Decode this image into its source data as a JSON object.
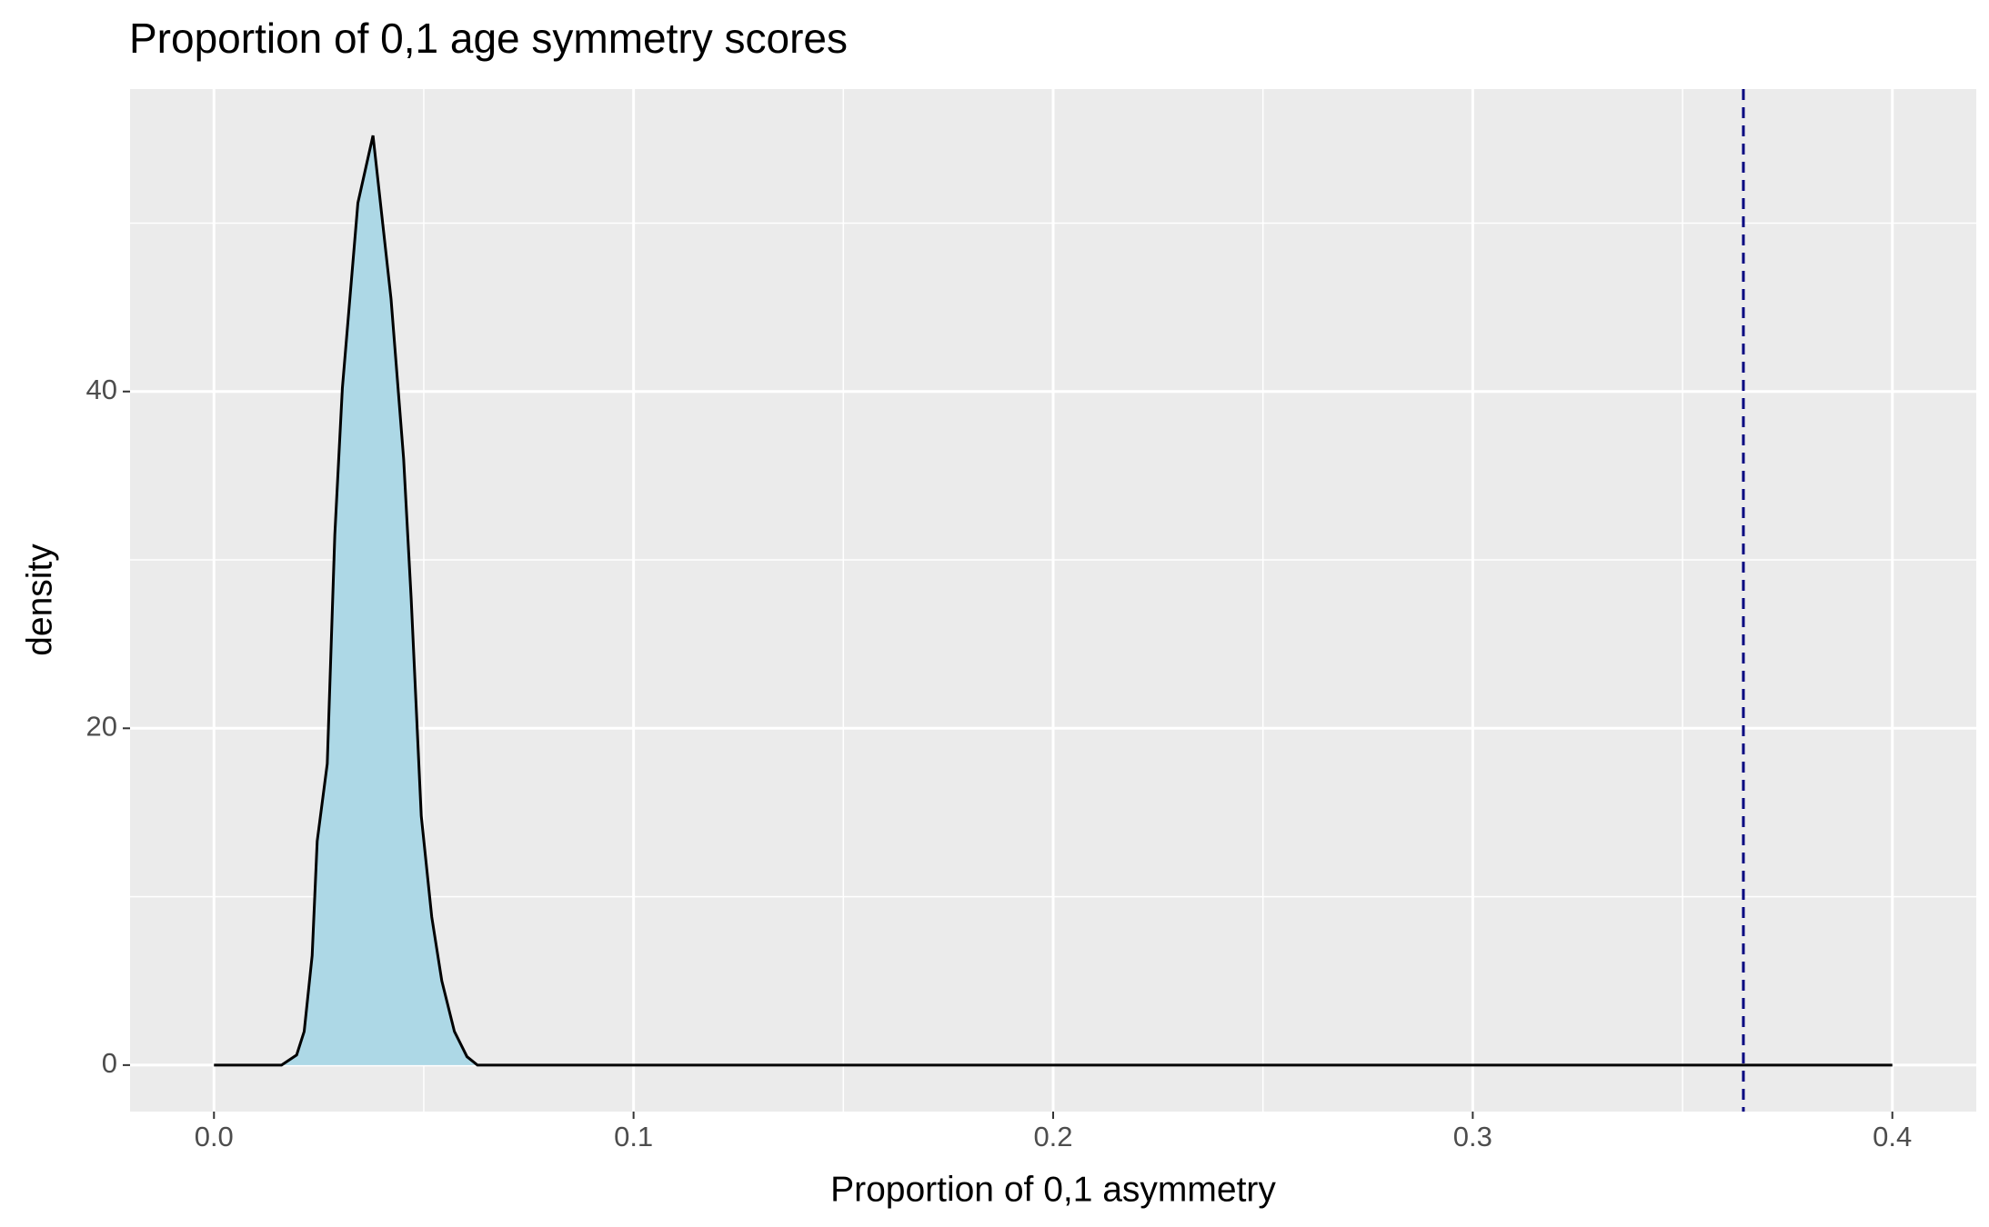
{
  "chart_data": {
    "type": "density",
    "title": "Proportion of 0,1 age symmetry scores",
    "x_label": "Proportion of 0,1 asymmetry",
    "y_label": "density",
    "x": [
      0,
      0.0161,
      0.0197,
      0.0215,
      0.0234,
      0.0246,
      0.027,
      0.0288,
      0.0306,
      0.0343,
      0.0379,
      0.0422,
      0.0452,
      0.047,
      0.0494,
      0.0519,
      0.0543,
      0.0573,
      0.0603,
      0.0628,
      0.4
    ],
    "values": [
      0,
      0,
      0.6,
      2,
      6.5,
      13.3,
      17.9,
      31.5,
      40.2,
      51.2,
      55.2,
      45.5,
      36,
      27.7,
      14.8,
      8.8,
      5,
      2,
      0.5,
      0,
      0
    ],
    "color": "#add8e6",
    "line_color": "#000000",
    "vline": 0.3645,
    "vline_color": "#000080",
    "xlim": [
      -0.02,
      0.42
    ],
    "ylim": [
      -2.76,
      57.96
    ],
    "xticks": [
      {
        "value": 0,
        "label": "0.0"
      },
      0.1,
      0.2,
      0.3,
      0.4
    ],
    "yticks": [
      0,
      20,
      40
    ],
    "x_minor_ticks": [
      0.05,
      0.15,
      0.25,
      0.35
    ],
    "y_minor_ticks": [
      10,
      30,
      50
    ],
    "grid": true
  }
}
